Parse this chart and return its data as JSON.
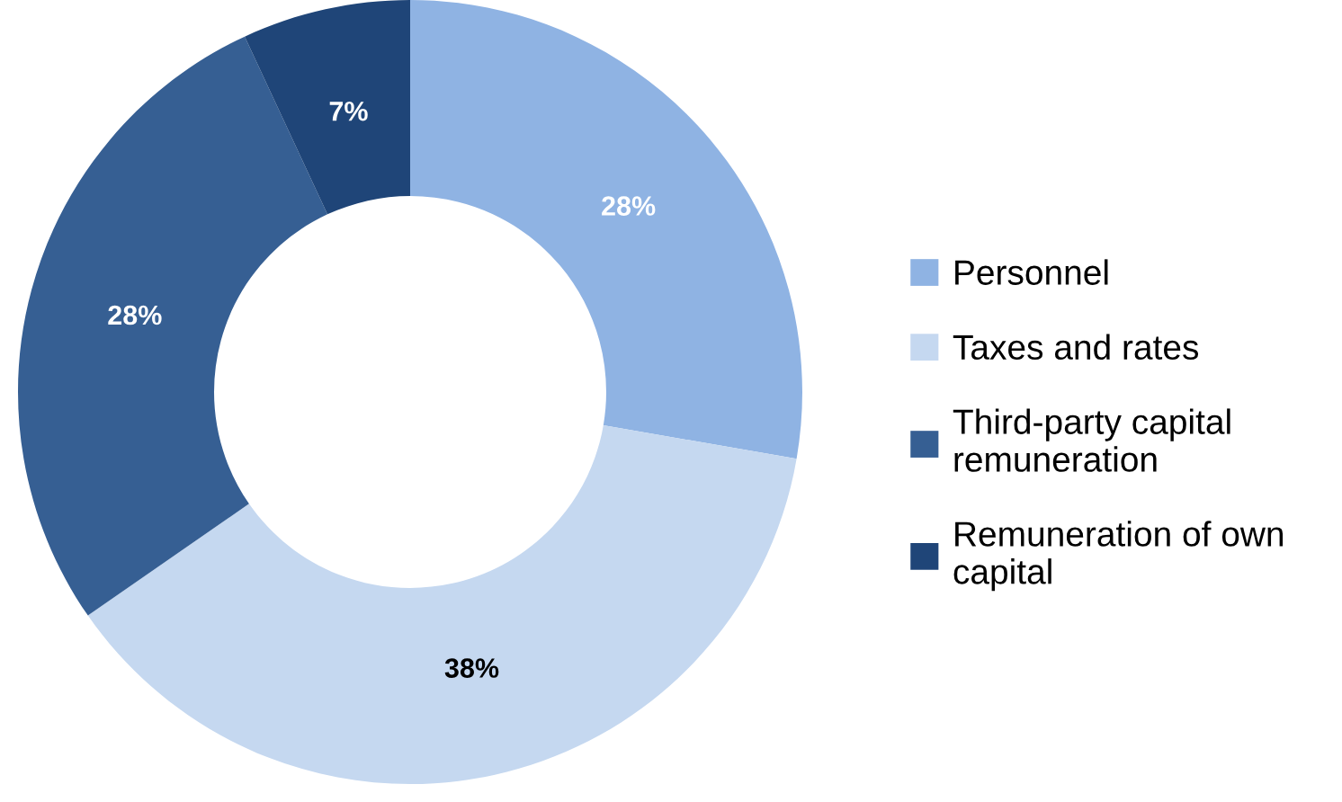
{
  "chart_data": {
    "type": "donut",
    "categories": [
      "Personnel",
      "Taxes and rates",
      "Third-party capital\nremuneration",
      "Remuneration of own\ncapital"
    ],
    "values": [
      28,
      38,
      28,
      7
    ],
    "colors": [
      "#8fb3e3",
      "#c5d8f0",
      "#365f93",
      "#1f4578"
    ],
    "value_labels": [
      "28%",
      "38%",
      "28%",
      "7%"
    ],
    "legend": "right"
  }
}
